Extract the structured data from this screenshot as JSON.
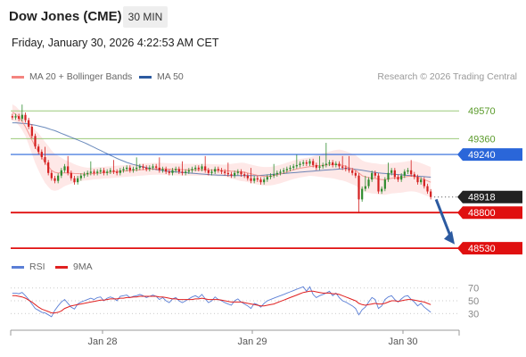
{
  "header": {
    "title": "Dow Jones (CME)",
    "timeframe": "30 MIN",
    "datetime": "Friday, January 30, 2026 4:22:53 AM CET"
  },
  "legend": {
    "items": [
      {
        "label": "MA 20 + Bollinger Bands",
        "color": "#f4847f"
      },
      {
        "label": "MA 50",
        "color": "#2c5aa0"
      }
    ],
    "credit": "Research © 2026 Trading Central"
  },
  "rsi_legend": {
    "items": [
      {
        "label": "RSI",
        "color": "#5b7fd6"
      },
      {
        "label": "9MA",
        "color": "#e02020"
      }
    ]
  },
  "chart_data": [
    {
      "type": "candlestick",
      "ylim": [
        48450,
        49700
      ],
      "x_ticks": [
        "Jan 28",
        "Jan 29",
        "Jan 30"
      ],
      "levels": [
        {
          "value": 49570,
          "label": "49570",
          "kind": "resistance-light"
        },
        {
          "value": 49360,
          "label": "49360",
          "kind": "resistance-light"
        },
        {
          "value": 49240,
          "label": "49240",
          "kind": "pivot"
        },
        {
          "value": 48918,
          "label": "48918",
          "kind": "last-price"
        },
        {
          "value": 48800,
          "label": "48800",
          "kind": "support"
        },
        {
          "value": 48530,
          "label": "48530",
          "kind": "support"
        }
      ],
      "forecast_arrow": {
        "from": 48900,
        "to": 48560
      },
      "colors": {
        "up": "#2e8b2e",
        "down": "#d42020",
        "pivot": "#2a66d9",
        "support": "#e01010",
        "resistance": "#9bc97a",
        "last": "#222222"
      },
      "close": [
        49520,
        49530,
        49510,
        49540,
        49500,
        49450,
        49380,
        49300,
        49260,
        49220,
        49180,
        49100,
        49060,
        49040,
        49080,
        49120,
        49150,
        49100,
        49060,
        49030,
        49060,
        49080,
        49090,
        49100,
        49110,
        49100,
        49110,
        49120,
        49100,
        49110,
        49120,
        49110,
        49100,
        49120,
        49130,
        49140,
        49120,
        49130,
        49140,
        49150,
        49140,
        49130,
        49140,
        49150,
        49140,
        49120,
        49130,
        49110,
        49100,
        49120,
        49130,
        49110,
        49100,
        49110,
        49120,
        49130,
        49140,
        49130,
        49150,
        49120,
        49100,
        49110,
        49130,
        49120,
        49110,
        49100,
        49090,
        49080,
        49100,
        49110,
        49090,
        49080,
        49060,
        49040,
        49060,
        49050,
        49030,
        49050,
        49070,
        49080,
        49090,
        49100,
        49110,
        49120,
        49130,
        49140,
        49150,
        49160,
        49170,
        49180,
        49170,
        49190,
        49160,
        49140,
        49150,
        49160,
        49170,
        49180,
        49160,
        49170,
        49150,
        49140,
        49130,
        49120,
        49100,
        49080,
        48900,
        48980,
        49000,
        49050,
        49100,
        49080,
        48960,
        48980,
        49050,
        49100,
        49120,
        49070,
        49050,
        49080,
        49110,
        49120,
        49090,
        49070,
        49030,
        49050,
        49000,
        48960,
        48918
      ],
      "ma20": [
        49560,
        49545,
        49520,
        49490,
        49450,
        49400,
        49350,
        49300,
        49260,
        49220,
        49180,
        49150,
        49120,
        49105,
        49100,
        49100,
        49100,
        49100,
        49098,
        49096,
        49095,
        49094,
        49093,
        49092,
        49094,
        49096,
        49098,
        49100,
        49102,
        49104,
        49106,
        49108,
        49110,
        49112,
        49114,
        49116,
        49118,
        49120,
        49122,
        49124,
        49126,
        49128,
        49130,
        49131,
        49132,
        49132,
        49131,
        49130,
        49129,
        49128,
        49127,
        49126,
        49125,
        49124,
        49124,
        49124,
        49124,
        49124,
        49124,
        49124,
        49123,
        49122,
        49121,
        49120,
        49119,
        49118,
        49116,
        49114,
        49112,
        49110,
        49108,
        49106,
        49100,
        49094,
        49088,
        49082,
        49078,
        49075,
        49075,
        49076,
        49080,
        49086,
        49092,
        49100,
        49108,
        49116,
        49124,
        49130,
        49136,
        49140,
        49144,
        49148,
        49152,
        49154,
        49156,
        49158,
        49160,
        49162,
        49164,
        49164,
        49162,
        49158,
        49150,
        49140,
        49130,
        49120,
        49100,
        49080,
        49070,
        49065,
        49060,
        49058,
        49054,
        49050,
        49050,
        49055,
        49060,
        49062,
        49064,
        49066,
        49070,
        49074,
        49076,
        49074,
        49068,
        49060,
        49050,
        49040,
        49030
      ],
      "bb_width": [
        60,
        60,
        60,
        65,
        70,
        85,
        105,
        125,
        140,
        150,
        155,
        155,
        150,
        140,
        130,
        115,
        100,
        90,
        80,
        70,
        62,
        55,
        50,
        48,
        46,
        45,
        45,
        45,
        45,
        45,
        45,
        45,
        45,
        45,
        45,
        45,
        45,
        45,
        45,
        45,
        45,
        45,
        45,
        45,
        45,
        45,
        45,
        45,
        45,
        45,
        45,
        45,
        45,
        45,
        45,
        45,
        45,
        45,
        45,
        45,
        45,
        45,
        45,
        45,
        45,
        45,
        50,
        55,
        60,
        65,
        70,
        70,
        70,
        70,
        70,
        70,
        70,
        70,
        70,
        70,
        70,
        70,
        70,
        70,
        70,
        70,
        70,
        70,
        70,
        70,
        70,
        70,
        75,
        80,
        85,
        90,
        95,
        100,
        105,
        110,
        115,
        115,
        115,
        115,
        115,
        115,
        115,
        115,
        115,
        115,
        115,
        115,
        115,
        115,
        115,
        115,
        115,
        115,
        115,
        115,
        115,
        115,
        115,
        115,
        115,
        115,
        115,
        115,
        115
      ],
      "ma50": [
        49480,
        49480,
        49478,
        49476,
        49474,
        49470,
        49466,
        49462,
        49456,
        49450,
        49444,
        49436,
        49428,
        49420,
        49410,
        49400,
        49390,
        49380,
        49370,
        49360,
        49350,
        49340,
        49330,
        49318,
        49306,
        49294,
        49282,
        49270,
        49258,
        49246,
        49234,
        49222,
        49210,
        49200,
        49190,
        49180,
        49172,
        49164,
        49158,
        49152,
        49146,
        49140,
        49135,
        49130,
        49126,
        49122,
        49118,
        49115,
        49112,
        49110,
        49108,
        49106,
        49104,
        49102,
        49100,
        49098,
        49096,
        49094,
        49092,
        49090,
        49088,
        49086,
        49085,
        49084,
        49083,
        49082,
        49081,
        49080,
        49080,
        49080,
        49080,
        49080,
        49080,
        49080,
        49080,
        49080,
        49082,
        49084,
        49086,
        49088,
        49090,
        49092,
        49094,
        49096,
        49098,
        49100,
        49102,
        49104,
        49106,
        49108,
        49110,
        49112,
        49114,
        49116,
        49118,
        49120,
        49122,
        49124,
        49126,
        49128,
        49130,
        49132,
        49134,
        49134,
        49132,
        49128,
        49124,
        49120,
        49116,
        49112,
        49108,
        49104,
        49100,
        49098,
        49096,
        49094,
        49092,
        49090,
        49088,
        49086,
        49084,
        49082,
        49080,
        49078,
        49076,
        49074,
        49072,
        49070,
        49068
      ],
      "rsi": {
        "ylim": [
          15,
          85
        ],
        "levels": [
          70,
          50,
          30
        ],
        "rsi": [
          62,
          62,
          61,
          63,
          58,
          52,
          45,
          38,
          35,
          32,
          31,
          28,
          25,
          35,
          42,
          48,
          52,
          46,
          40,
          37,
          45,
          48,
          50,
          52,
          54,
          52,
          55,
          56,
          50,
          54,
          56,
          54,
          50,
          57,
          58,
          59,
          55,
          57,
          58,
          60,
          58,
          55,
          57,
          59,
          57,
          52,
          55,
          50,
          47,
          53,
          55,
          50,
          47,
          50,
          53,
          56,
          58,
          55,
          60,
          53,
          47,
          50,
          56,
          52,
          50,
          47,
          45,
          43,
          50,
          53,
          48,
          45,
          42,
          38,
          46,
          44,
          40,
          46,
          50,
          52,
          54,
          56,
          58,
          60,
          62,
          64,
          66,
          68,
          70,
          72,
          65,
          72,
          60,
          55,
          58,
          60,
          62,
          65,
          58,
          62,
          55,
          50,
          48,
          45,
          42,
          38,
          28,
          36,
          40,
          48,
          55,
          52,
          38,
          42,
          52,
          56,
          58,
          52,
          48,
          53,
          57,
          58,
          52,
          48,
          42,
          46,
          40,
          36,
          32
        ],
        "ma9": [
          58,
          58,
          57,
          56,
          54,
          51,
          48,
          44,
          40,
          37,
          35,
          33,
          31,
          31,
          32,
          34,
          38,
          40,
          42,
          43,
          44,
          45,
          46,
          47,
          48,
          49,
          50,
          51,
          51,
          52,
          53,
          53,
          53,
          54,
          54,
          55,
          55,
          56,
          56,
          57,
          57,
          57,
          57,
          57,
          57,
          56,
          56,
          55,
          54,
          53,
          53,
          52,
          52,
          52,
          52,
          52,
          53,
          53,
          54,
          53,
          52,
          52,
          52,
          52,
          51,
          50,
          49,
          48,
          48,
          48,
          48,
          47,
          46,
          45,
          44,
          43,
          42,
          42,
          43,
          44,
          45,
          47,
          49,
          51,
          53,
          55,
          57,
          59,
          61,
          63,
          64,
          65,
          65,
          64,
          63,
          62,
          62,
          62,
          61,
          61,
          60,
          58,
          56,
          54,
          52,
          50,
          46,
          44,
          43,
          44,
          45,
          46,
          45,
          45,
          46,
          48,
          50,
          50,
          49,
          50,
          51,
          52,
          52,
          51,
          50,
          49,
          48,
          46,
          44
        ]
      }
    }
  ]
}
